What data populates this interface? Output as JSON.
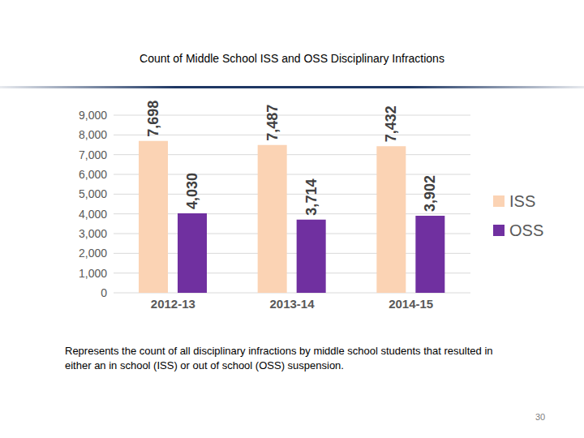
{
  "chart_data": {
    "type": "bar",
    "title": "Count of Middle School ISS and OSS Disciplinary Infractions",
    "categories": [
      "2012-13",
      "2013-14",
      "2014-15"
    ],
    "series": [
      {
        "name": "ISS",
        "color": "#fbd3b4",
        "values": [
          7698,
          7487,
          7432
        ],
        "value_labels": [
          "7,698",
          "7,487",
          "7,432"
        ]
      },
      {
        "name": "OSS",
        "color": "#7030a0",
        "values": [
          4030,
          3714,
          3902
        ],
        "value_labels": [
          "4,030",
          "3,714",
          "3,902"
        ]
      }
    ],
    "ylim": [
      0,
      9000
    ],
    "yticks": [
      0,
      {
        "value": 1000,
        "label": "1,000"
      },
      {
        "value": 2000,
        "label": "2,000"
      },
      {
        "value": 3000,
        "label": "3,000"
      },
      {
        "value": 4000,
        "label": "4,000"
      },
      {
        "value": 5000,
        "label": "5,000"
      },
      {
        "value": 6000,
        "label": "6,000"
      },
      {
        "value": 7000,
        "label": "7,000"
      },
      {
        "value": 8000,
        "label": "8,000"
      },
      {
        "value": 9000,
        "label": "9,000"
      }
    ],
    "grid": true,
    "legend": "right",
    "data_labels": true,
    "caption": "Represents the count of all disciplinary infractions by middle school students that resulted in either an in school (ISS) or out of school (OSS) suspension.",
    "page_number": "30"
  }
}
